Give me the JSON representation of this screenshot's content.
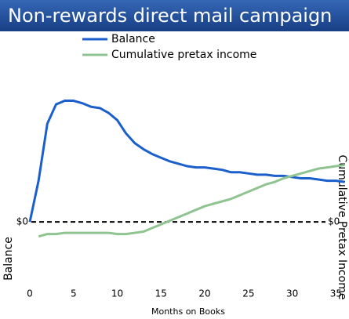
{
  "chart_data": {
    "type": "line",
    "title": "Non-rewards direct mail campaign",
    "x_label": "Months on Books",
    "y_label": "Balance",
    "y2_label": "Cumulative Pretax Income",
    "x": [
      0,
      1,
      2,
      3,
      4,
      5,
      6,
      7,
      8,
      9,
      10,
      11,
      12,
      13,
      14,
      15,
      16,
      17,
      18,
      19,
      20,
      21,
      22,
      23,
      24,
      25,
      26,
      27,
      28,
      29,
      30,
      31,
      32,
      33,
      34,
      35,
      36
    ],
    "series": [
      {
        "name": "Balance",
        "color": "#1a5fcc",
        "values": [
          0,
          34,
          81,
          97,
          100,
          100,
          98,
          95,
          94,
          90,
          84,
          73,
          65,
          60,
          56,
          53,
          50,
          48,
          46,
          45,
          45,
          44,
          43,
          41,
          41,
          40,
          39,
          39,
          38,
          38,
          37,
          36,
          36,
          35,
          34,
          34,
          33
        ]
      },
      {
        "name": "Cumulative pretax income",
        "color": "#8fc490",
        "axis": "y2",
        "values": [
          null,
          -12,
          -10,
          -10,
          -9,
          -9,
          -9,
          -9,
          -9,
          -9,
          -10,
          -10,
          -9,
          -8,
          -5,
          -2,
          1,
          4,
          7,
          10,
          13,
          15,
          17,
          19,
          22,
          25,
          28,
          31,
          33,
          36,
          38,
          40,
          42,
          44,
          45,
          46,
          47
        ]
      }
    ],
    "xlim": [
      0,
      36.4
    ],
    "xticks": [
      0,
      5,
      10,
      15,
      20,
      25,
      30,
      35
    ],
    "ylim": [
      -51,
      112
    ],
    "yticks": [
      {
        "value": 0,
        "label": "$0"
      }
    ],
    "y2lim": [
      -51,
      112
    ],
    "y2ticks": [
      {
        "value": 0,
        "label": "$0"
      }
    ]
  }
}
